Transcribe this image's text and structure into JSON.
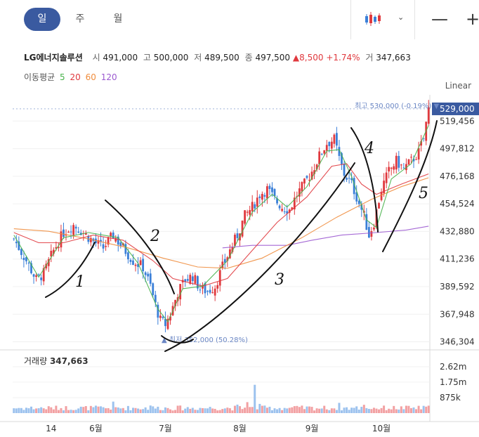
{
  "tabs": [
    {
      "label": "일",
      "active": true
    },
    {
      "label": "주",
      "active": false
    },
    {
      "label": "월",
      "active": false
    }
  ],
  "toolbar": {
    "chart_type_icon": "candlestick-icon",
    "dropdown_icon": "chevron-down-icon",
    "zoom_out": "—",
    "zoom_in": "+"
  },
  "quote": {
    "name": "LG에너지솔루션",
    "open_label": "시",
    "open": "491,000",
    "high_label": "고",
    "high": "500,000",
    "low_label": "저",
    "low": "489,500",
    "close_label": "종",
    "close": "497,500",
    "change_arrow": "▲",
    "change": "8,500",
    "change_pct": "+1.74%",
    "volume_label": "거",
    "volume": "347,663"
  },
  "ma_legend": {
    "label": "이동평균",
    "periods": [
      "5",
      "20",
      "60",
      "120"
    ],
    "colors": [
      "#47b34a",
      "#e0393e",
      "#f08c3c",
      "#9b59d0"
    ]
  },
  "scale_mode": "Linear",
  "colors": {
    "up": "#e0393e",
    "down": "#3a7fd8",
    "accent": "#3a5aa0",
    "marker": "#6a86c4"
  },
  "volume_panel": {
    "label": "거래량",
    "value": "347,663",
    "ticks": [
      "2.62m",
      "1.75m",
      "875k"
    ]
  },
  "chart_data": {
    "type": "candlestick",
    "y_ticks": [
      "529,000",
      "519,456",
      "497,812",
      "476,168",
      "454,524",
      "432,880",
      "411,236",
      "389,592",
      "367,948",
      "346,304"
    ],
    "y_range": [
      340000,
      540000
    ],
    "current_price": "529,000",
    "x_ticks": [
      "14",
      "6월",
      "7월",
      "8월",
      "9월",
      "10월"
    ],
    "high_marker": "최고 530,000 (-0.19%)",
    "low_marker": "최저 352,000 (50.28%)",
    "annotations": [
      "1",
      "2",
      "3",
      "4",
      "5"
    ],
    "close_path": [
      [
        0,
        427000
      ],
      [
        5,
        410000
      ],
      [
        9,
        395000
      ],
      [
        12,
        400000
      ],
      [
        16,
        418000
      ],
      [
        20,
        432000
      ],
      [
        24,
        438000
      ],
      [
        28,
        432000
      ],
      [
        32,
        425000
      ],
      [
        36,
        420000
      ],
      [
        40,
        430000
      ],
      [
        44,
        420000
      ],
      [
        48,
        410000
      ],
      [
        52,
        405000
      ],
      [
        55,
        390000
      ],
      [
        57,
        375000
      ],
      [
        59,
        363000
      ],
      [
        61,
        360000
      ],
      [
        63,
        368000
      ],
      [
        66,
        385000
      ],
      [
        69,
        395000
      ],
      [
        72,
        398000
      ],
      [
        75,
        388000
      ],
      [
        78,
        386000
      ],
      [
        81,
        390000
      ],
      [
        84,
        405000
      ],
      [
        87,
        418000
      ],
      [
        90,
        430000
      ],
      [
        93,
        445000
      ],
      [
        96,
        452000
      ],
      [
        99,
        462000
      ],
      [
        102,
        466000
      ],
      [
        105,
        458000
      ],
      [
        108,
        452000
      ],
      [
        111,
        450000
      ],
      [
        114,
        462000
      ],
      [
        117,
        470000
      ],
      [
        120,
        480000
      ],
      [
        123,
        492000
      ],
      [
        126,
        502000
      ],
      [
        129,
        505000
      ],
      [
        131,
        490000
      ],
      [
        133,
        478000
      ],
      [
        136,
        470000
      ],
      [
        138,
        460000
      ],
      [
        141,
        445000
      ],
      [
        143,
        430000
      ],
      [
        145,
        440000
      ],
      [
        148,
        466000
      ],
      [
        151,
        480000
      ],
      [
        154,
        488000
      ],
      [
        157,
        482000
      ],
      [
        160,
        488000
      ],
      [
        163,
        495000
      ],
      [
        165,
        506000
      ],
      [
        167,
        529000
      ]
    ],
    "ma5": [
      [
        0,
        430000
      ],
      [
        10,
        397000
      ],
      [
        20,
        428000
      ],
      [
        30,
        432000
      ],
      [
        42,
        428000
      ],
      [
        50,
        408000
      ],
      [
        58,
        372000
      ],
      [
        62,
        362000
      ],
      [
        68,
        388000
      ],
      [
        76,
        390000
      ],
      [
        86,
        410000
      ],
      [
        96,
        448000
      ],
      [
        104,
        462000
      ],
      [
        110,
        452000
      ],
      [
        118,
        468000
      ],
      [
        126,
        496000
      ],
      [
        131,
        497000
      ],
      [
        136,
        476000
      ],
      [
        142,
        442000
      ],
      [
        146,
        436000
      ],
      [
        152,
        474000
      ],
      [
        160,
        486000
      ],
      [
        167,
        516000
      ]
    ],
    "ma20": [
      [
        0,
        432000
      ],
      [
        10,
        424000
      ],
      [
        20,
        424000
      ],
      [
        32,
        430000
      ],
      [
        44,
        426000
      ],
      [
        56,
        410000
      ],
      [
        64,
        396000
      ],
      [
        76,
        390000
      ],
      [
        86,
        396000
      ],
      [
        96,
        418000
      ],
      [
        106,
        440000
      ],
      [
        118,
        460000
      ],
      [
        128,
        484000
      ],
      [
        134,
        486000
      ],
      [
        140,
        470000
      ],
      [
        146,
        462000
      ],
      [
        156,
        470000
      ],
      [
        167,
        478000
      ]
    ],
    "ma60": [
      [
        0,
        435000
      ],
      [
        14,
        433000
      ],
      [
        30,
        427000
      ],
      [
        46,
        420000
      ],
      [
        60,
        412000
      ],
      [
        74,
        405000
      ],
      [
        86,
        404000
      ],
      [
        100,
        412000
      ],
      [
        116,
        428000
      ],
      [
        130,
        444000
      ],
      [
        144,
        458000
      ],
      [
        156,
        468000
      ],
      [
        167,
        475000
      ]
    ],
    "ma120": [
      [
        84,
        420000
      ],
      [
        96,
        422000
      ],
      [
        110,
        422000
      ],
      [
        120,
        426000
      ],
      [
        132,
        430000
      ],
      [
        146,
        432000
      ],
      [
        158,
        434000
      ],
      [
        167,
        437000
      ]
    ],
    "volume_scale_max": 2620000
  }
}
